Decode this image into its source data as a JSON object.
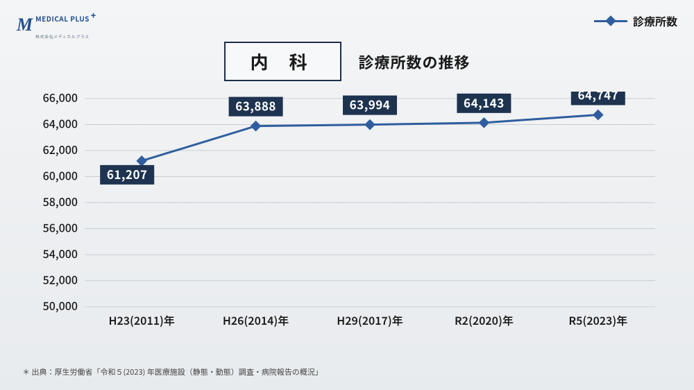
{
  "logo": {
    "mark": "M",
    "text": "MEDICAL PLUS",
    "plus": "+",
    "subtext": "株式会社メディカルプラス"
  },
  "legend": {
    "label": "診療所数"
  },
  "title": {
    "boxed": "内 科",
    "sub": "診療所数の推移"
  },
  "chart": {
    "type": "line",
    "line_color": "#2f5e9e",
    "data_label_bg": "#1e3350",
    "grid_color": "#c9ced4",
    "background_color": "transparent",
    "ylim": [
      50000,
      66000
    ],
    "ytick_step": 2000,
    "y_ticks": [
      50000,
      52000,
      54000,
      56000,
      58000,
      60000,
      62000,
      64000,
      66000
    ],
    "y_tick_labels": [
      "50,000",
      "52,000",
      "54,000",
      "56,000",
      "58,000",
      "60,000",
      "62,000",
      "64,000",
      "66,000"
    ],
    "categories": [
      "H23(2011)年",
      "H26(2014)年",
      "H29(2017)年",
      "R2(2020)年",
      "R5(2023)年"
    ],
    "values": [
      61207,
      63888,
      63994,
      64143,
      64747
    ],
    "value_labels": [
      "61,207",
      "63,888",
      "63,994",
      "64,143",
      "64,747"
    ],
    "marker": "diamond",
    "marker_size": 11,
    "line_width": 3,
    "label_fontsize": 16,
    "data_label_fontsize": 17
  },
  "footnote": "＊ 出典：厚生労働省「令和５(2023) 年医療施設（静態・動態）調査・病院報告の概況」"
}
